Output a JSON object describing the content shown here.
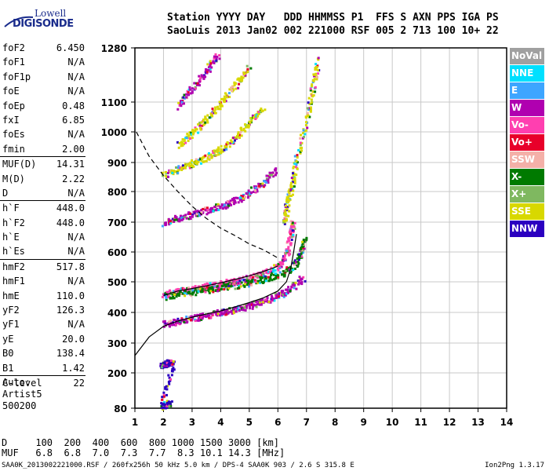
{
  "logo": {
    "line1": "Lowell",
    "line2": "DIGISONDE"
  },
  "header": {
    "columns": "Station YYYY DAY   DDD HHMMSS P1  FFS S AXN PPS IGA PS",
    "values": "SaoLuis 2013 Jan02 002 221000 RSF 005 2 713 100 10+ 22"
  },
  "parameters": [
    {
      "label": "foF2",
      "value": "6.450"
    },
    {
      "label": "foF1",
      "value": "N/A"
    },
    {
      "label": "foF1p",
      "value": "N/A"
    },
    {
      "label": "foE",
      "value": "N/A"
    },
    {
      "label": "foEp",
      "value": "0.48"
    },
    {
      "label": "fxI",
      "value": "6.85"
    },
    {
      "label": "foEs",
      "value": "N/A"
    },
    {
      "label": "fmin",
      "value": "2.00"
    },
    {
      "sep": true
    },
    {
      "label": "MUF(D)",
      "value": "14.31"
    },
    {
      "label": "M(D)",
      "value": "2.22"
    },
    {
      "label": "D",
      "value": "N/A"
    },
    {
      "sep": true
    },
    {
      "label": "h`F",
      "value": "448.0"
    },
    {
      "label": "h`F2",
      "value": "448.0"
    },
    {
      "label": "h`E",
      "value": "N/A"
    },
    {
      "label": "h`Es",
      "value": "N/A"
    },
    {
      "sep": true
    },
    {
      "label": "hmF2",
      "value": "517.8"
    },
    {
      "label": "hmF1",
      "value": "N/A"
    },
    {
      "label": "hmE",
      "value": "110.0"
    },
    {
      "label": "yF2",
      "value": "126.3"
    },
    {
      "label": "yF1",
      "value": "N/A"
    },
    {
      "label": "yE",
      "value": "20.0"
    },
    {
      "label": "B0",
      "value": "138.4"
    },
    {
      "label": "B1",
      "value": "1.42"
    },
    {
      "sep": true
    },
    {
      "label": "C-level",
      "value": "22"
    }
  ],
  "auto": [
    "Auto:",
    "Artist5",
    "500200"
  ],
  "bottom_table": {
    "d_row": "D     100  200  400  600  800 1000 1500 3000 [km]",
    "muf_row": "MUF   6.8  6.8  7.0  7.3  7.7  8.3 10.1 14.3 [MHz]"
  },
  "footer": "SAA0K_2013002221000.RSF / 260fx256h 50 kHz 5.0 km / DPS-4 SAA0K 903 / 2.6 S 315.8 E",
  "version": "Ion2Png 1.3.17",
  "legend": [
    {
      "label": "NoVal",
      "color": "#a0a0a0"
    },
    {
      "label": "NNE",
      "color": "#00e0ff"
    },
    {
      "label": "E",
      "color": "#3da5ff"
    },
    {
      "label": "W",
      "color": "#b000b0"
    },
    {
      "label": "Vo-",
      "color": "#ff3fb0"
    },
    {
      "label": "Vo+",
      "color": "#e8002a"
    },
    {
      "label": "SSW",
      "color": "#f4b0a8"
    },
    {
      "label": "X-",
      "color": "#007a00"
    },
    {
      "label": "X+",
      "color": "#7fb860"
    },
    {
      "label": "SSE",
      "color": "#d8d800"
    },
    {
      "label": "NNW",
      "color": "#2b00c0"
    }
  ],
  "chart_data": {
    "type": "scatter",
    "x_ticks": [
      1,
      2,
      3,
      4,
      5,
      6,
      7,
      8,
      9,
      10,
      11,
      12,
      13,
      14
    ],
    "y_ticks": [
      80,
      200,
      300,
      400,
      500,
      600,
      700,
      800,
      900,
      1000,
      1100,
      1280
    ],
    "xlim": [
      1,
      14
    ],
    "ylim": [
      80,
      1280
    ],
    "grid": true,
    "legend_position": "right",
    "profile_line": [
      [
        1.0,
        258
      ],
      [
        1.5,
        320
      ],
      [
        2.0,
        355
      ],
      [
        2.5,
        372
      ],
      [
        3.0,
        384
      ],
      [
        3.5,
        395
      ],
      [
        4.0,
        405
      ],
      [
        4.5,
        418
      ],
      [
        5.0,
        432
      ],
      [
        5.5,
        448
      ],
      [
        6.0,
        470
      ],
      [
        6.3,
        500
      ],
      [
        6.45,
        545
      ],
      [
        6.55,
        600
      ],
      [
        6.65,
        660
      ]
    ],
    "secondary_line": [
      [
        2.0,
        455
      ],
      [
        2.5,
        470
      ],
      [
        3.0,
        478
      ],
      [
        3.5,
        487
      ],
      [
        4.0,
        497
      ],
      [
        4.5,
        508
      ],
      [
        5.0,
        520
      ],
      [
        5.5,
        535
      ],
      [
        5.8,
        545
      ],
      [
        6.0,
        553
      ]
    ],
    "dashed_line": [
      [
        1.05,
        1000
      ],
      [
        1.5,
        920
      ],
      [
        2.0,
        855
      ],
      [
        2.5,
        800
      ],
      [
        3.0,
        752
      ],
      [
        3.5,
        712
      ],
      [
        4.0,
        680
      ],
      [
        4.5,
        655
      ],
      [
        5.0,
        627
      ],
      [
        5.5,
        607
      ],
      [
        6.0,
        580
      ]
    ],
    "traces": [
      {
        "name": "O-trace",
        "color": "#ff3fb0",
        "points": [
          [
            2.0,
            462
          ],
          [
            2.5,
            470
          ],
          [
            3.0,
            478
          ],
          [
            3.5,
            487
          ],
          [
            4.0,
            495
          ],
          [
            4.5,
            505
          ],
          [
            5.0,
            516
          ],
          [
            5.5,
            532
          ],
          [
            6.0,
            556
          ],
          [
            6.3,
            600
          ],
          [
            6.45,
            670
          ],
          [
            6.5,
            700
          ]
        ]
      },
      {
        "name": "X-trace",
        "color": "#007a00",
        "points": [
          [
            2.0,
            455
          ],
          [
            2.6,
            463
          ],
          [
            3.2,
            472
          ],
          [
            3.8,
            480
          ],
          [
            4.4,
            490
          ],
          [
            5.0,
            500
          ],
          [
            5.5,
            512
          ],
          [
            6.1,
            530
          ],
          [
            6.6,
            560
          ],
          [
            6.8,
            610
          ],
          [
            6.9,
            650
          ]
        ]
      },
      {
        "name": "low-E",
        "color": "#b000b0",
        "points": [
          [
            2.0,
            365
          ],
          [
            2.5,
            375
          ],
          [
            3.0,
            385
          ],
          [
            3.5,
            393
          ],
          [
            4.0,
            403
          ],
          [
            4.5,
            413
          ],
          [
            5.0,
            425
          ],
          [
            5.5,
            440
          ],
          [
            6.0,
            458
          ],
          [
            6.4,
            478
          ],
          [
            6.9,
            520
          ]
        ]
      },
      {
        "name": "2F",
        "color": "#b000b0",
        "points": [
          [
            2.0,
            700
          ],
          [
            2.5,
            715
          ],
          [
            3.0,
            728
          ],
          [
            3.5,
            742
          ],
          [
            4.0,
            755
          ],
          [
            4.5,
            772
          ],
          [
            5.0,
            800
          ],
          [
            5.5,
            835
          ],
          [
            5.9,
            880
          ]
        ]
      },
      {
        "name": "3F",
        "color": "#d8d800",
        "points": [
          [
            2.0,
            860
          ],
          [
            2.5,
            880
          ],
          [
            3.0,
            900
          ],
          [
            3.5,
            920
          ],
          [
            4.0,
            945
          ],
          [
            4.5,
            985
          ],
          [
            5.0,
            1040
          ],
          [
            5.5,
            1085
          ]
        ]
      },
      {
        "name": "4F",
        "color": "#d8d800",
        "points": [
          [
            2.5,
            960
          ],
          [
            3.0,
            1000
          ],
          [
            3.5,
            1050
          ],
          [
            4.0,
            1100
          ],
          [
            4.5,
            1160
          ],
          [
            5.0,
            1220
          ]
        ]
      },
      {
        "name": "5F",
        "color": "#b000b0",
        "points": [
          [
            2.5,
            1090
          ],
          [
            3.0,
            1150
          ],
          [
            3.5,
            1210
          ],
          [
            3.9,
            1260
          ]
        ]
      },
      {
        "name": "spread",
        "color": "#d8d800",
        "points": [
          [
            6.2,
            700
          ],
          [
            6.3,
            760
          ],
          [
            6.45,
            820
          ],
          [
            6.6,
            900
          ],
          [
            7.0,
            1050
          ],
          [
            7.2,
            1150
          ],
          [
            7.4,
            1250
          ]
        ]
      },
      {
        "name": "low",
        "color": "#2b00c0",
        "points": [
          [
            1.9,
            225
          ],
          [
            2.1,
            235
          ],
          [
            2.3,
            240
          ],
          [
            1.9,
            90
          ],
          [
            2.1,
            95
          ],
          [
            2.2,
            100
          ]
        ]
      }
    ]
  }
}
